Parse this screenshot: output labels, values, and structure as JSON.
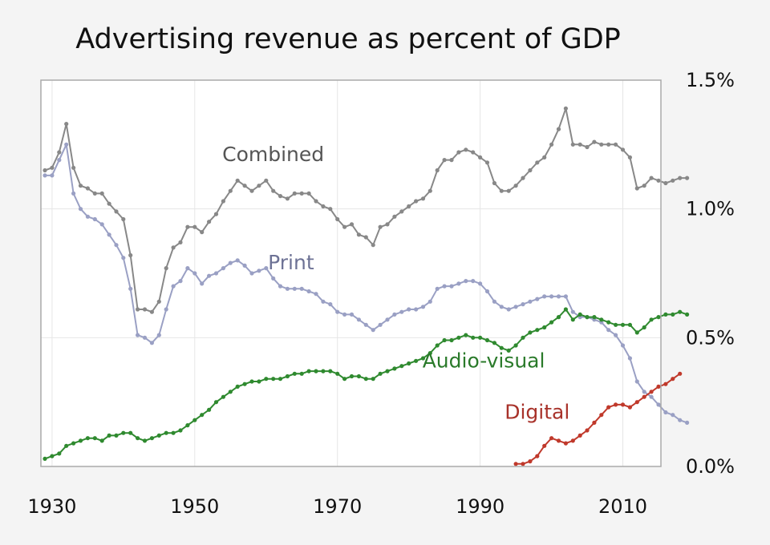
{
  "chart_data": {
    "type": "line",
    "title": "Advertising revenue as percent of GDP",
    "xlabel": "",
    "ylabel": "",
    "xlim": [
      1928,
      2015
    ],
    "ylim": [
      0,
      1.5
    ],
    "grid": true,
    "legend": "inline labels",
    "x_ticks": [
      {
        "value": 1930,
        "label": "1930"
      },
      {
        "value": 1950,
        "label": "1950"
      },
      {
        "value": 1970,
        "label": "1970"
      },
      {
        "value": 1990,
        "label": "1990"
      },
      {
        "value": 2010,
        "label": "2010"
      }
    ],
    "y_ticks": [
      {
        "value": 0,
        "label": "0.0%"
      },
      {
        "value": 0.5,
        "label": "0.5%"
      },
      {
        "value": 1.0,
        "label": "1.0%"
      },
      {
        "value": 1.5,
        "label": "1.5%"
      }
    ],
    "series": [
      {
        "name": "Combined",
        "color": "#888888",
        "label": {
          "text": "Combined",
          "x": 1961,
          "y": 1.185,
          "color": "#555555"
        },
        "x_start": 1929,
        "values": [
          1.15,
          1.16,
          1.22,
          1.33,
          1.16,
          1.09,
          1.08,
          1.06,
          1.06,
          1.02,
          0.99,
          0.96,
          0.82,
          0.61,
          0.61,
          0.6,
          0.64,
          0.77,
          0.85,
          0.87,
          0.93,
          0.93,
          0.91,
          0.95,
          0.98,
          1.03,
          1.07,
          1.11,
          1.09,
          1.07,
          1.09,
          1.11,
          1.07,
          1.05,
          1.04,
          1.06,
          1.06,
          1.06,
          1.03,
          1.01,
          1.0,
          0.96,
          0.93,
          0.94,
          0.9,
          0.89,
          0.86,
          0.93,
          0.94,
          0.97,
          0.99,
          1.01,
          1.03,
          1.04,
          1.07,
          1.15,
          1.19,
          1.19,
          1.22,
          1.23,
          1.22,
          1.2,
          1.18,
          1.1,
          1.07,
          1.07,
          1.09,
          1.12,
          1.15,
          1.18,
          1.2,
          1.25,
          1.31,
          1.39,
          1.25,
          1.25,
          1.24,
          1.26,
          1.25,
          1.25,
          1.25,
          1.23,
          1.2,
          1.08,
          1.09,
          1.12,
          1.11,
          1.1,
          1.11,
          1.12,
          1.12
        ]
      },
      {
        "name": "Print",
        "color": "#9aa0c4",
        "label": {
          "text": "Print",
          "x": 1963.5,
          "y": 0.765,
          "color": "#6d7295"
        },
        "x_start": 1929,
        "values": [
          1.13,
          1.13,
          1.19,
          1.25,
          1.06,
          1.0,
          0.97,
          0.96,
          0.94,
          0.9,
          0.86,
          0.81,
          0.69,
          0.51,
          0.5,
          0.48,
          0.51,
          0.61,
          0.7,
          0.72,
          0.77,
          0.75,
          0.71,
          0.74,
          0.75,
          0.77,
          0.79,
          0.8,
          0.78,
          0.75,
          0.76,
          0.77,
          0.73,
          0.7,
          0.69,
          0.69,
          0.69,
          0.68,
          0.67,
          0.64,
          0.63,
          0.6,
          0.59,
          0.59,
          0.57,
          0.55,
          0.53,
          0.55,
          0.57,
          0.59,
          0.6,
          0.61,
          0.61,
          0.62,
          0.64,
          0.69,
          0.7,
          0.7,
          0.71,
          0.72,
          0.72,
          0.71,
          0.68,
          0.64,
          0.62,
          0.61,
          0.62,
          0.63,
          0.64,
          0.65,
          0.66,
          0.66,
          0.66,
          0.66,
          0.6,
          0.58,
          0.58,
          0.57,
          0.56,
          0.53,
          0.51,
          0.47,
          0.42,
          0.33,
          0.29,
          0.27,
          0.24,
          0.21,
          0.2,
          0.18,
          0.17
        ]
      },
      {
        "name": "Audio-visual",
        "color": "#2f8a2f",
        "label": {
          "text": "Audio-visual",
          "x": 1990.5,
          "y": 0.385,
          "color": "#2a7a2a"
        },
        "x_start": 1929,
        "values": [
          0.03,
          0.04,
          0.05,
          0.08,
          0.09,
          0.1,
          0.11,
          0.11,
          0.1,
          0.12,
          0.12,
          0.13,
          0.13,
          0.11,
          0.1,
          0.11,
          0.12,
          0.13,
          0.13,
          0.14,
          0.16,
          0.18,
          0.2,
          0.22,
          0.25,
          0.27,
          0.29,
          0.31,
          0.32,
          0.33,
          0.33,
          0.34,
          0.34,
          0.34,
          0.35,
          0.36,
          0.36,
          0.37,
          0.37,
          0.37,
          0.37,
          0.36,
          0.34,
          0.35,
          0.35,
          0.34,
          0.34,
          0.36,
          0.37,
          0.38,
          0.39,
          0.4,
          0.41,
          0.42,
          0.44,
          0.47,
          0.49,
          0.49,
          0.5,
          0.51,
          0.5,
          0.5,
          0.49,
          0.48,
          0.46,
          0.45,
          0.47,
          0.5,
          0.52,
          0.53,
          0.54,
          0.56,
          0.58,
          0.61,
          0.57,
          0.59,
          0.58,
          0.58,
          0.57,
          0.56,
          0.55,
          0.55,
          0.55,
          0.52,
          0.54,
          0.57,
          0.58,
          0.59,
          0.59,
          0.6,
          0.59
        ]
      },
      {
        "name": "Digital",
        "color": "#c0392b",
        "label": {
          "text": "Digital",
          "x": 1998,
          "y": 0.185,
          "color": "#a8322a"
        },
        "x_start": 1995,
        "values": [
          0.01,
          0.01,
          0.02,
          0.04,
          0.08,
          0.11,
          0.1,
          0.09,
          0.1,
          0.12,
          0.14,
          0.17,
          0.2,
          0.23,
          0.24,
          0.24,
          0.23,
          0.25,
          0.27,
          0.29,
          0.31,
          0.32,
          0.34,
          0.36
        ]
      }
    ]
  }
}
